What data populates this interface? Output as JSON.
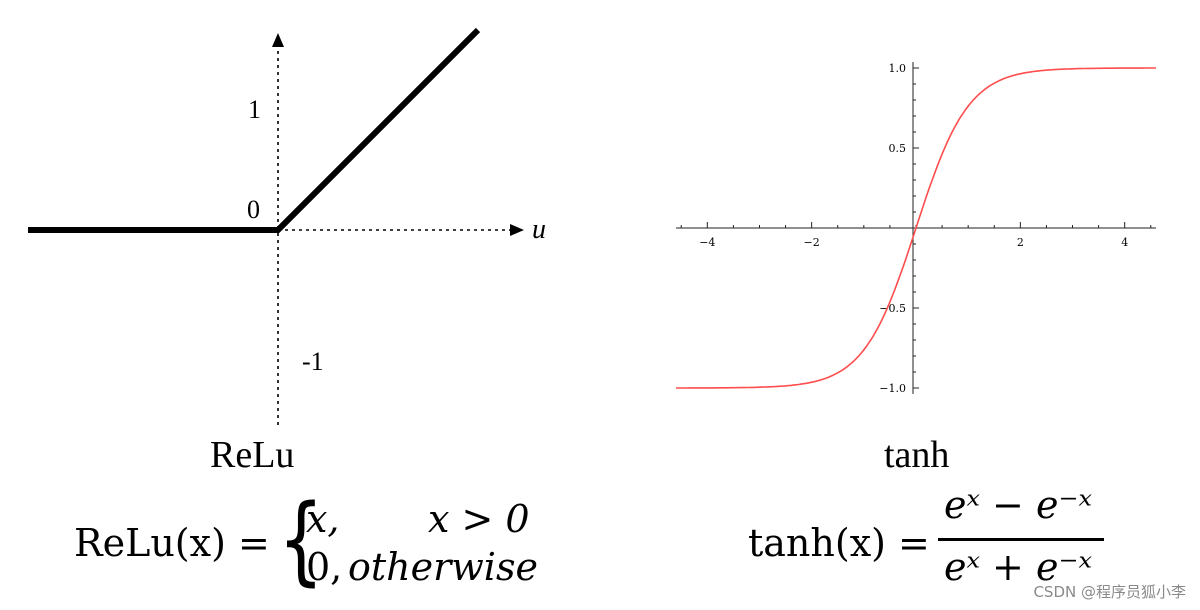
{
  "chart_data": [
    {
      "type": "line",
      "title": "ReLu",
      "xlabel": "u",
      "ylabel": "",
      "y_tick_labels": [
        "1",
        "0",
        "-1"
      ],
      "series": [
        {
          "x": [
            -1.0,
            0,
            0.8
          ],
          "y": [
            0,
            0,
            0.8
          ]
        }
      ],
      "grid": false,
      "formula": {
        "lhs": "ReLu(x) =",
        "case1_value": "x,",
        "case1_condition": "x > 0",
        "case2_value": "0,",
        "case2_condition": "otherwise"
      }
    },
    {
      "type": "line",
      "title": "tanh",
      "xlabel": "",
      "ylabel": "",
      "xlim": [
        -4.6,
        4.6
      ],
      "ylim": [
        -1.0,
        1.0
      ],
      "x_ticks": [
        -4,
        -2,
        2,
        4
      ],
      "y_ticks": [
        1.0,
        0.5,
        -0.5,
        -1.0
      ],
      "x_tick_labels": [
        "−4",
        "−2",
        "2",
        "4"
      ],
      "y_tick_labels": [
        "1.0",
        "0.5",
        "−0.5",
        "−1.0"
      ],
      "series": [
        {
          "color": "#ff4d4d",
          "x": [
            -4.6,
            -4,
            -3,
            -2.5,
            -2,
            -1.5,
            -1,
            -0.5,
            0,
            0.5,
            1,
            1.5,
            2,
            2.5,
            3,
            4,
            4.6
          ],
          "y": [
            -1.0,
            -0.999,
            -0.995,
            -0.987,
            -0.964,
            -0.905,
            -0.762,
            -0.462,
            0,
            0.462,
            0.762,
            0.905,
            0.964,
            0.987,
            0.995,
            0.999,
            1.0
          ]
        }
      ],
      "grid": false,
      "formula": {
        "lhs": "tanh(x) =",
        "numerator": "eˣ − e⁻ˣ",
        "denominator": "eˣ + e⁻ˣ"
      }
    }
  ],
  "watermark": "CSDN @程序员狐小李"
}
